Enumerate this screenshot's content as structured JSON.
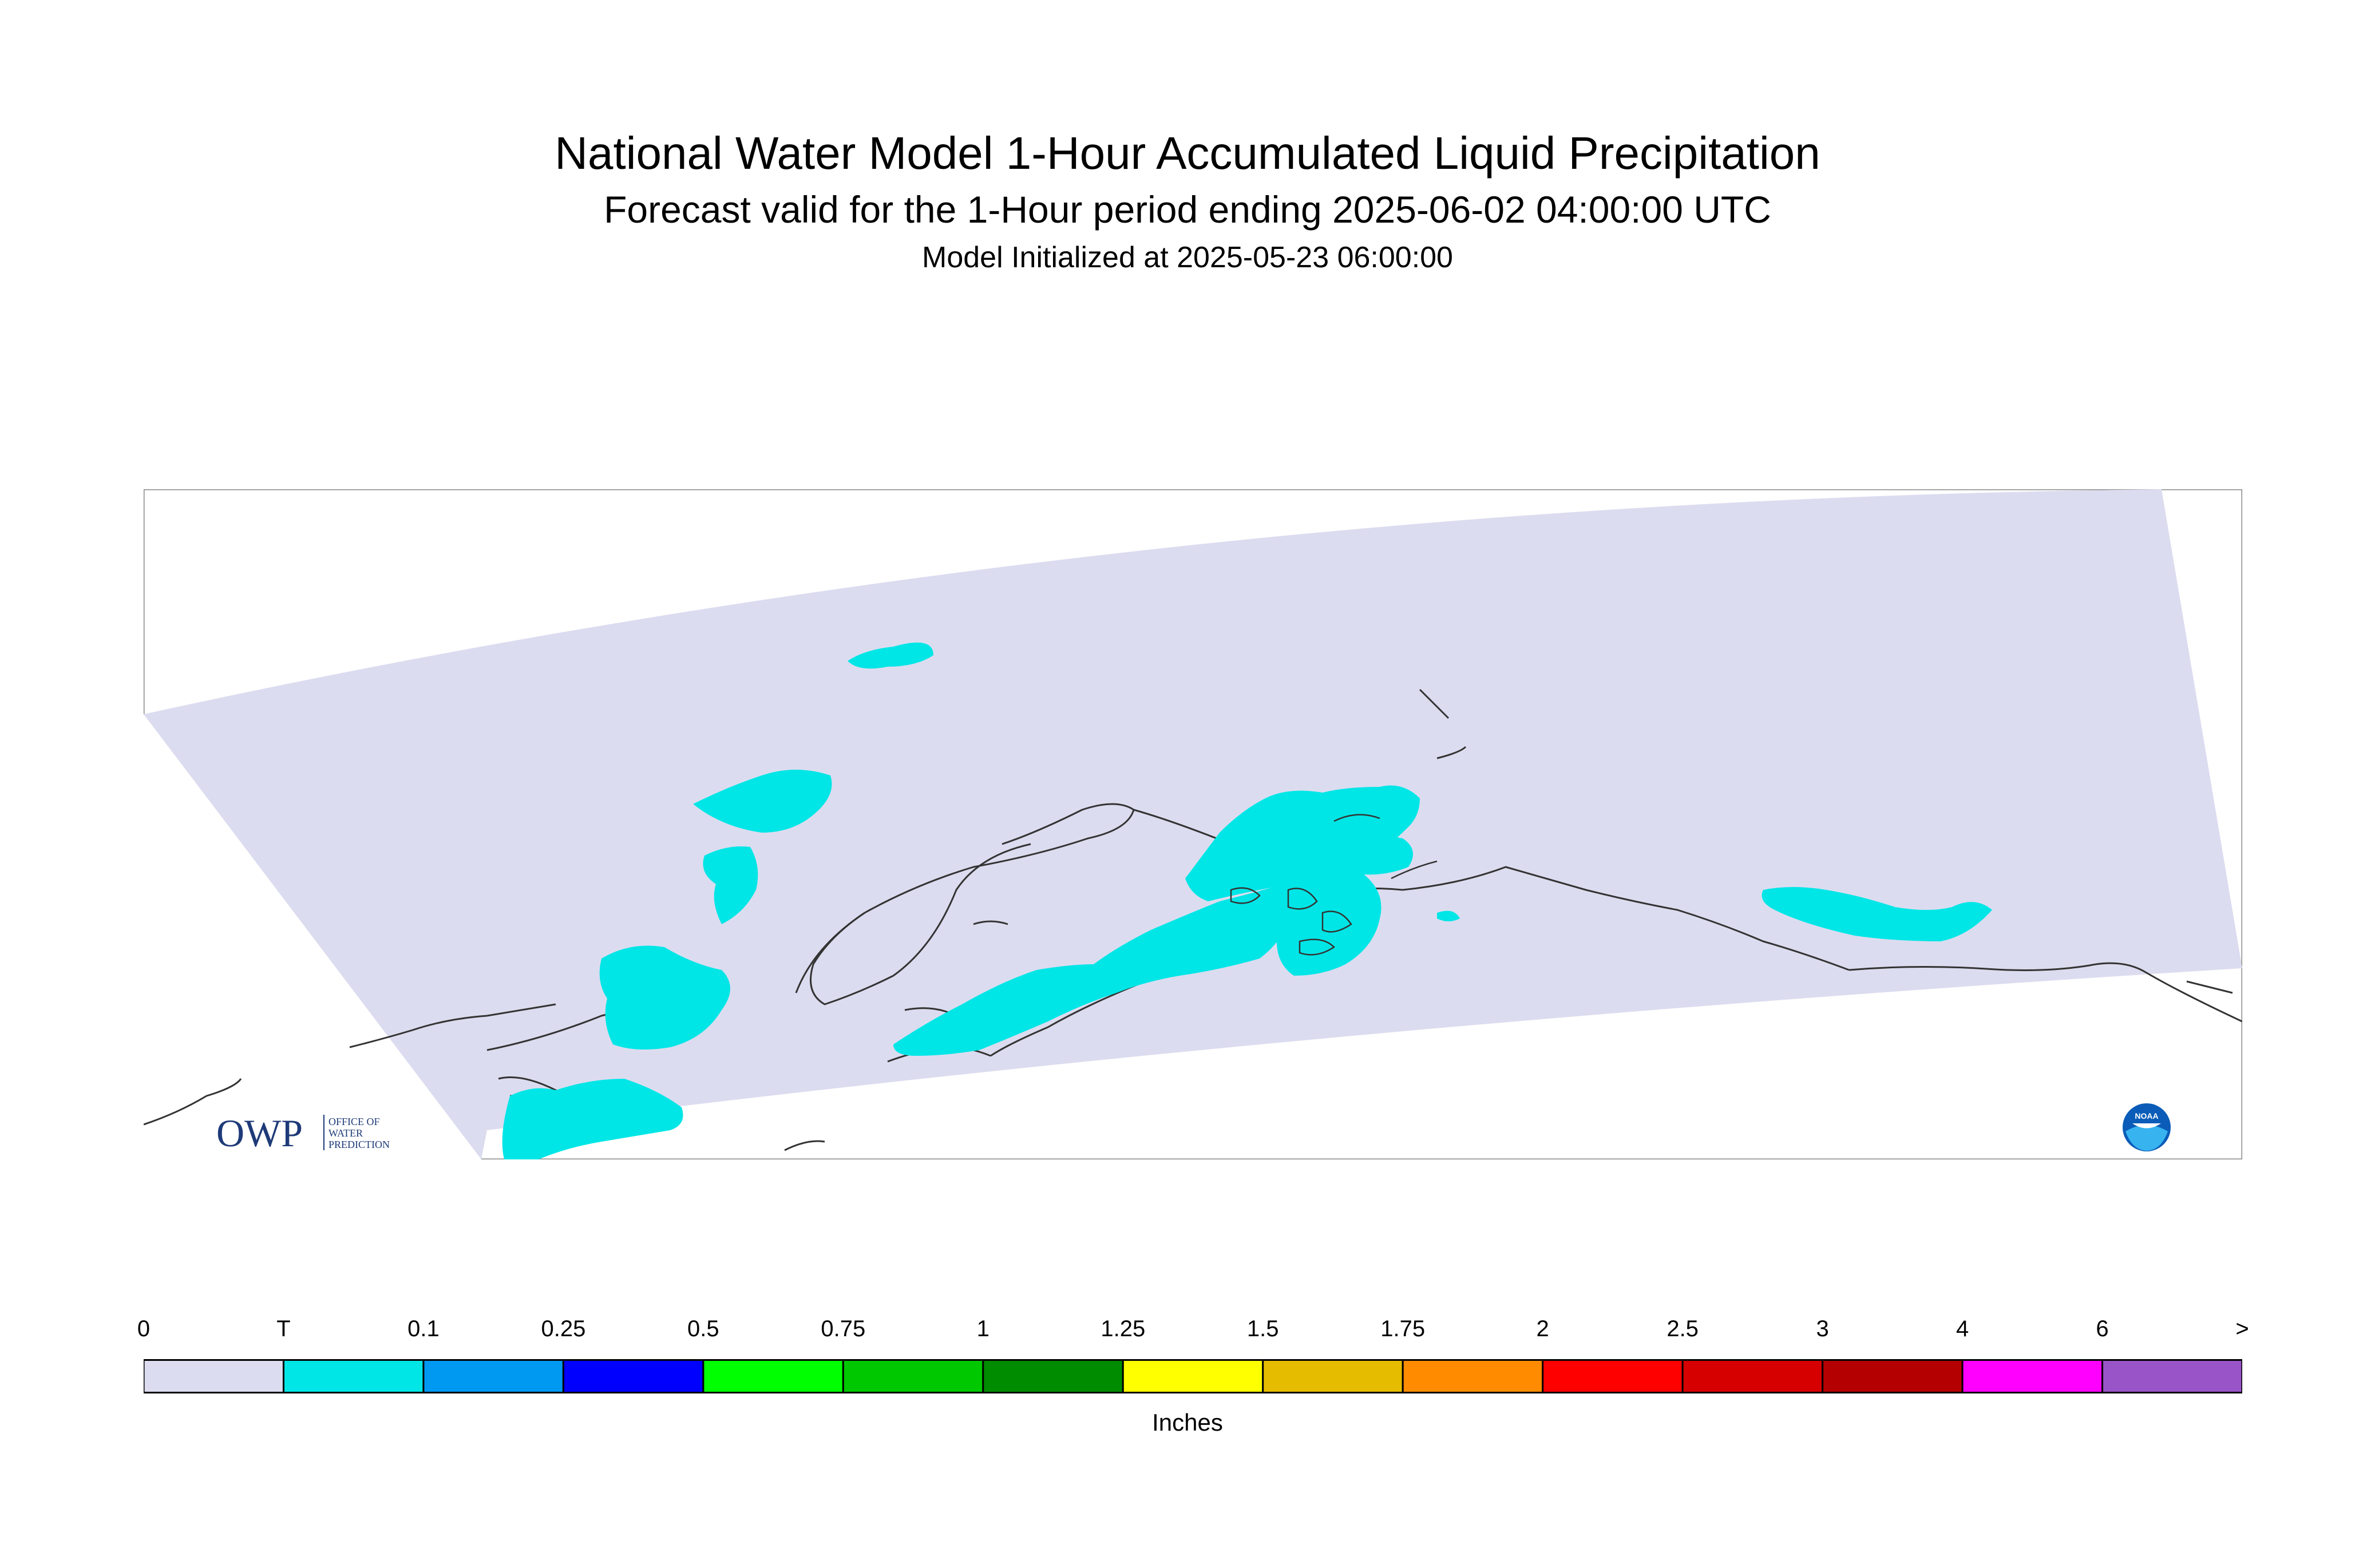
{
  "title": {
    "main": "National Water Model 1-Hour Accumulated Liquid Precipitation",
    "subtitle": "Forecast valid for the 1-Hour period ending 2025-06-02 04:00:00 UTC",
    "init": "Model Initialized at 2025-05-23 06:00:00"
  },
  "map": {
    "region": "Alaska",
    "domain_color": "#dcdcf0",
    "precip_color": "#00e6e6",
    "coast_color": "#333333"
  },
  "logos": {
    "owp_mark": "OWP",
    "owp_text": [
      "OFFICE OF",
      "WATER",
      "PREDICTION"
    ],
    "noaa_text": "NOAA"
  },
  "legend": {
    "labels": [
      "0",
      "T",
      "0.1",
      "0.25",
      "0.5",
      "0.75",
      "1",
      "1.25",
      "1.5",
      "1.75",
      "2",
      "2.5",
      "3",
      "4",
      "6",
      ">"
    ],
    "colors": [
      "#dcdcf0",
      "#00e6e6",
      "#0099f2",
      "#0000ff",
      "#00ff00",
      "#00c800",
      "#008c00",
      "#ffff00",
      "#e6bc00",
      "#ff8c00",
      "#ff0000",
      "#d70000",
      "#b40000",
      "#ff00ff",
      "#9955c8"
    ],
    "units": "Inches"
  }
}
